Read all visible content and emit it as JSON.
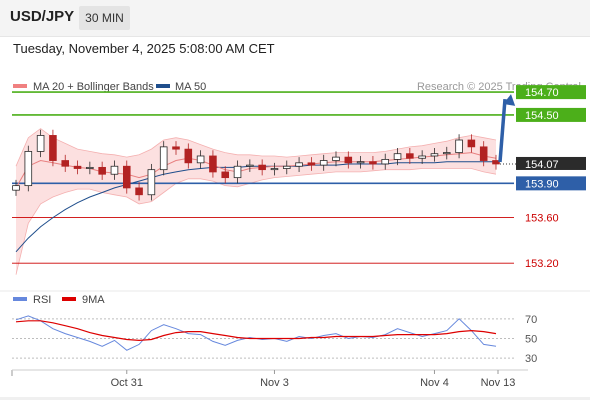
{
  "header": {
    "pair": "USD/JPY",
    "timeframe": "30 MIN",
    "datetime": "Tuesday, November 4, 2025 5:08:00 AM CET"
  },
  "chart_data": [
    {
      "type": "line",
      "title": "",
      "legend": [
        {
          "name": "MA 20 + Bollinger Bands",
          "color": "#f08080"
        },
        {
          "name": "MA 50",
          "color": "#1f4e8c"
        }
      ],
      "legend_placement": "top-left",
      "attribution": "Research © 2025 Trading Central",
      "y_range": [
        153.0,
        154.85
      ],
      "price_series": [
        153.88,
        154.18,
        154.32,
        154.1,
        154.05,
        154.03,
        154.04,
        153.98,
        154.05,
        153.86,
        153.8,
        154.02,
        154.22,
        154.2,
        154.08,
        154.14,
        154.0,
        153.95,
        154.05,
        154.06,
        154.02,
        154.03,
        154.05,
        154.08,
        154.06,
        154.1,
        154.13,
        154.08,
        154.09,
        154.07,
        154.11,
        154.16,
        154.12,
        154.14,
        154.16,
        154.17,
        154.28,
        154.22,
        154.1,
        154.07
      ],
      "ma20": [
        153.86,
        154.05,
        154.1,
        154.08,
        154.06,
        154.04,
        154.03,
        154.0,
        153.99,
        153.98,
        153.95,
        153.98,
        154.05,
        154.1,
        154.12,
        154.1,
        154.06,
        154.02,
        154.0,
        154.03,
        154.04,
        154.05,
        154.05,
        154.06,
        154.07,
        154.08,
        154.09,
        154.09,
        154.09,
        154.09,
        154.1,
        154.11,
        154.12,
        154.13,
        154.14,
        154.15,
        154.16,
        154.17,
        154.14,
        154.12
      ],
      "bb_upper": [
        154.05,
        154.3,
        154.38,
        154.3,
        154.25,
        154.2,
        154.18,
        154.16,
        154.15,
        154.13,
        154.15,
        154.2,
        154.28,
        154.3,
        154.28,
        154.24,
        154.2,
        154.17,
        154.15,
        154.15,
        154.14,
        154.14,
        154.13,
        154.14,
        154.15,
        154.16,
        154.17,
        154.17,
        154.17,
        154.17,
        154.18,
        154.2,
        154.22,
        154.23,
        154.25,
        154.27,
        154.3,
        154.32,
        154.3,
        154.28
      ],
      "bb_lower": [
        153.1,
        153.55,
        153.72,
        153.78,
        153.82,
        153.85,
        153.85,
        153.82,
        153.8,
        153.78,
        153.72,
        153.74,
        153.82,
        153.9,
        153.94,
        153.94,
        153.92,
        153.88,
        153.87,
        153.9,
        153.93,
        153.95,
        153.96,
        153.97,
        153.98,
        153.99,
        154.0,
        154.0,
        154.0,
        154.01,
        154.02,
        154.02,
        154.02,
        154.03,
        154.03,
        154.03,
        154.03,
        154.03,
        154.0,
        153.98
      ],
      "ma50": [
        153.3,
        153.42,
        153.52,
        153.6,
        153.67,
        153.73,
        153.78,
        153.82,
        153.86,
        153.89,
        153.92,
        153.95,
        153.98,
        154.0,
        154.02,
        154.03,
        154.04,
        154.04,
        154.04,
        154.05,
        154.05,
        154.05,
        154.05,
        154.05,
        154.06,
        154.06,
        154.06,
        154.07,
        154.07,
        154.07,
        154.07,
        154.08,
        154.08,
        154.08,
        154.08,
        154.09,
        154.09,
        154.09,
        154.09,
        154.09
      ],
      "levels": [
        {
          "value": 154.7,
          "label": "154.70",
          "kind": "resistance",
          "color": "#4caf1a"
        },
        {
          "value": 154.5,
          "label": "154.50",
          "kind": "resistance",
          "color": "#4caf1a"
        },
        {
          "value": 154.07,
          "label": "154.07",
          "kind": "last-price",
          "color": "#333333"
        },
        {
          "value": 153.9,
          "label": "153.90",
          "kind": "pivot",
          "color": "#2e5fa8"
        },
        {
          "value": 153.6,
          "label": "153.60",
          "kind": "support",
          "color": "#cc0000"
        },
        {
          "value": 153.2,
          "label": "153.20",
          "kind": "support",
          "color": "#cc0000"
        }
      ],
      "x_ticks": [
        {
          "index": 9,
          "label": "Oct 31"
        },
        {
          "index": 21,
          "label": "Nov 3"
        },
        {
          "index": 34,
          "label": "Nov 4"
        },
        {
          "index": 39,
          "label": "Nov 13"
        }
      ],
      "forecast_arrow": {
        "from": 154.07,
        "to": 154.7,
        "color": "#2e5fa8"
      }
    },
    {
      "type": "line",
      "legend": [
        {
          "name": "RSI",
          "color": "#6688dd"
        },
        {
          "name": "9MA",
          "color": "#dd0000"
        }
      ],
      "legend_placement": "top-left",
      "y_range": [
        22,
        80
      ],
      "y_ticks": [
        {
          "value": 70,
          "label": "70"
        },
        {
          "value": 50,
          "label": "50"
        },
        {
          "value": 30,
          "label": "30"
        }
      ],
      "rsi": [
        69,
        73,
        68,
        60,
        55,
        51,
        47,
        42,
        48,
        38,
        44,
        58,
        64,
        60,
        55,
        54,
        47,
        43,
        48,
        51,
        49,
        50,
        47,
        52,
        50,
        53,
        55,
        50,
        52,
        51,
        54,
        60,
        56,
        52,
        55,
        58,
        70,
        58,
        44,
        42
      ],
      "rsi_ma": [
        67,
        68,
        68,
        66,
        63,
        60,
        56,
        53,
        51,
        49,
        48,
        49,
        53,
        56,
        57,
        57,
        55,
        53,
        51,
        50,
        50,
        50,
        50,
        50,
        51,
        51,
        52,
        52,
        52,
        52,
        53,
        54,
        54,
        54,
        54,
        55,
        57,
        58,
        57,
        55
      ]
    }
  ]
}
